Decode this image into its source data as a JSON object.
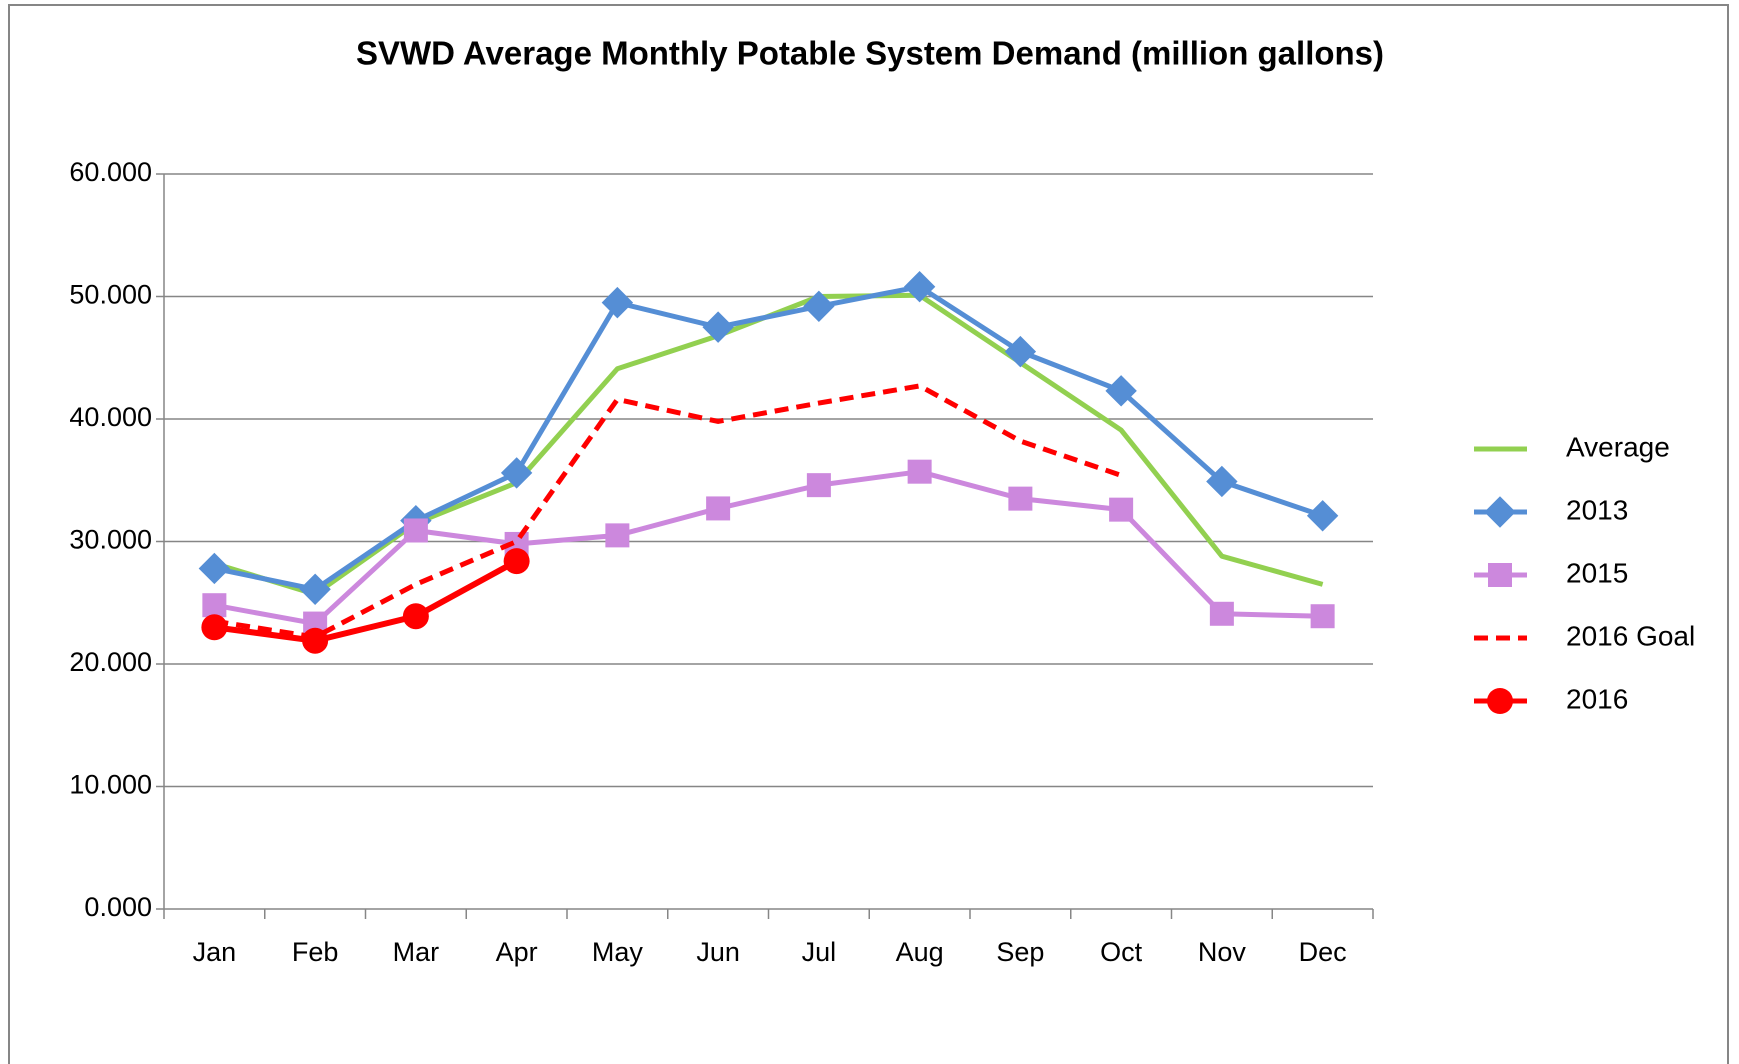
{
  "chart_data": {
    "type": "line",
    "title": "SVWD Average Monthly Potable System Demand (million gallons)",
    "categories": [
      "Jan",
      "Feb",
      "Mar",
      "Apr",
      "May",
      "Jun",
      "Jul",
      "Aug",
      "Sep",
      "Oct",
      "Nov",
      "Dec"
    ],
    "series": [
      {
        "name": "Average",
        "color": "#92d050",
        "marker": null,
        "dash": false,
        "values": [
          28.2,
          25.7,
          31.5,
          34.8,
          44.1,
          46.8,
          50.0,
          50.1,
          44.6,
          39.1,
          28.8,
          26.5
        ]
      },
      {
        "name": "2013",
        "color": "#558ed5",
        "marker": "diamond",
        "dash": false,
        "values": [
          27.8,
          26.1,
          31.7,
          35.6,
          49.5,
          47.5,
          49.2,
          50.8,
          45.5,
          42.3,
          34.9,
          32.1
        ]
      },
      {
        "name": "2015",
        "color": "#cc88dd",
        "marker": "square",
        "dash": false,
        "values": [
          24.8,
          23.3,
          30.9,
          29.8,
          30.5,
          32.7,
          34.6,
          35.7,
          33.5,
          32.6,
          24.1,
          23.9
        ]
      },
      {
        "name": "2016 Goal",
        "color": "#ff0000",
        "marker": null,
        "dash": true,
        "values": [
          23.5,
          22.2,
          26.5,
          30.0,
          41.6,
          39.8,
          41.3,
          42.7,
          38.2,
          35.4,
          null,
          null
        ]
      },
      {
        "name": "2016",
        "color": "#ff0000",
        "marker": "circle",
        "dash": false,
        "values": [
          23.0,
          21.9,
          23.9,
          28.4,
          null,
          null,
          null,
          null,
          null,
          null,
          null,
          null
        ]
      }
    ],
    "ylim": [
      0,
      60
    ],
    "yticks": [
      {
        "value": 0,
        "label": "0.000"
      },
      {
        "value": 10,
        "label": "10.000"
      },
      {
        "value": 20,
        "label": "20.000"
      },
      {
        "value": 30,
        "label": "30.000"
      },
      {
        "value": 40,
        "label": "40.000"
      },
      {
        "value": 50,
        "label": "50.000"
      },
      {
        "value": 60,
        "label": "60.000"
      }
    ],
    "grid": true,
    "legend": "right"
  }
}
